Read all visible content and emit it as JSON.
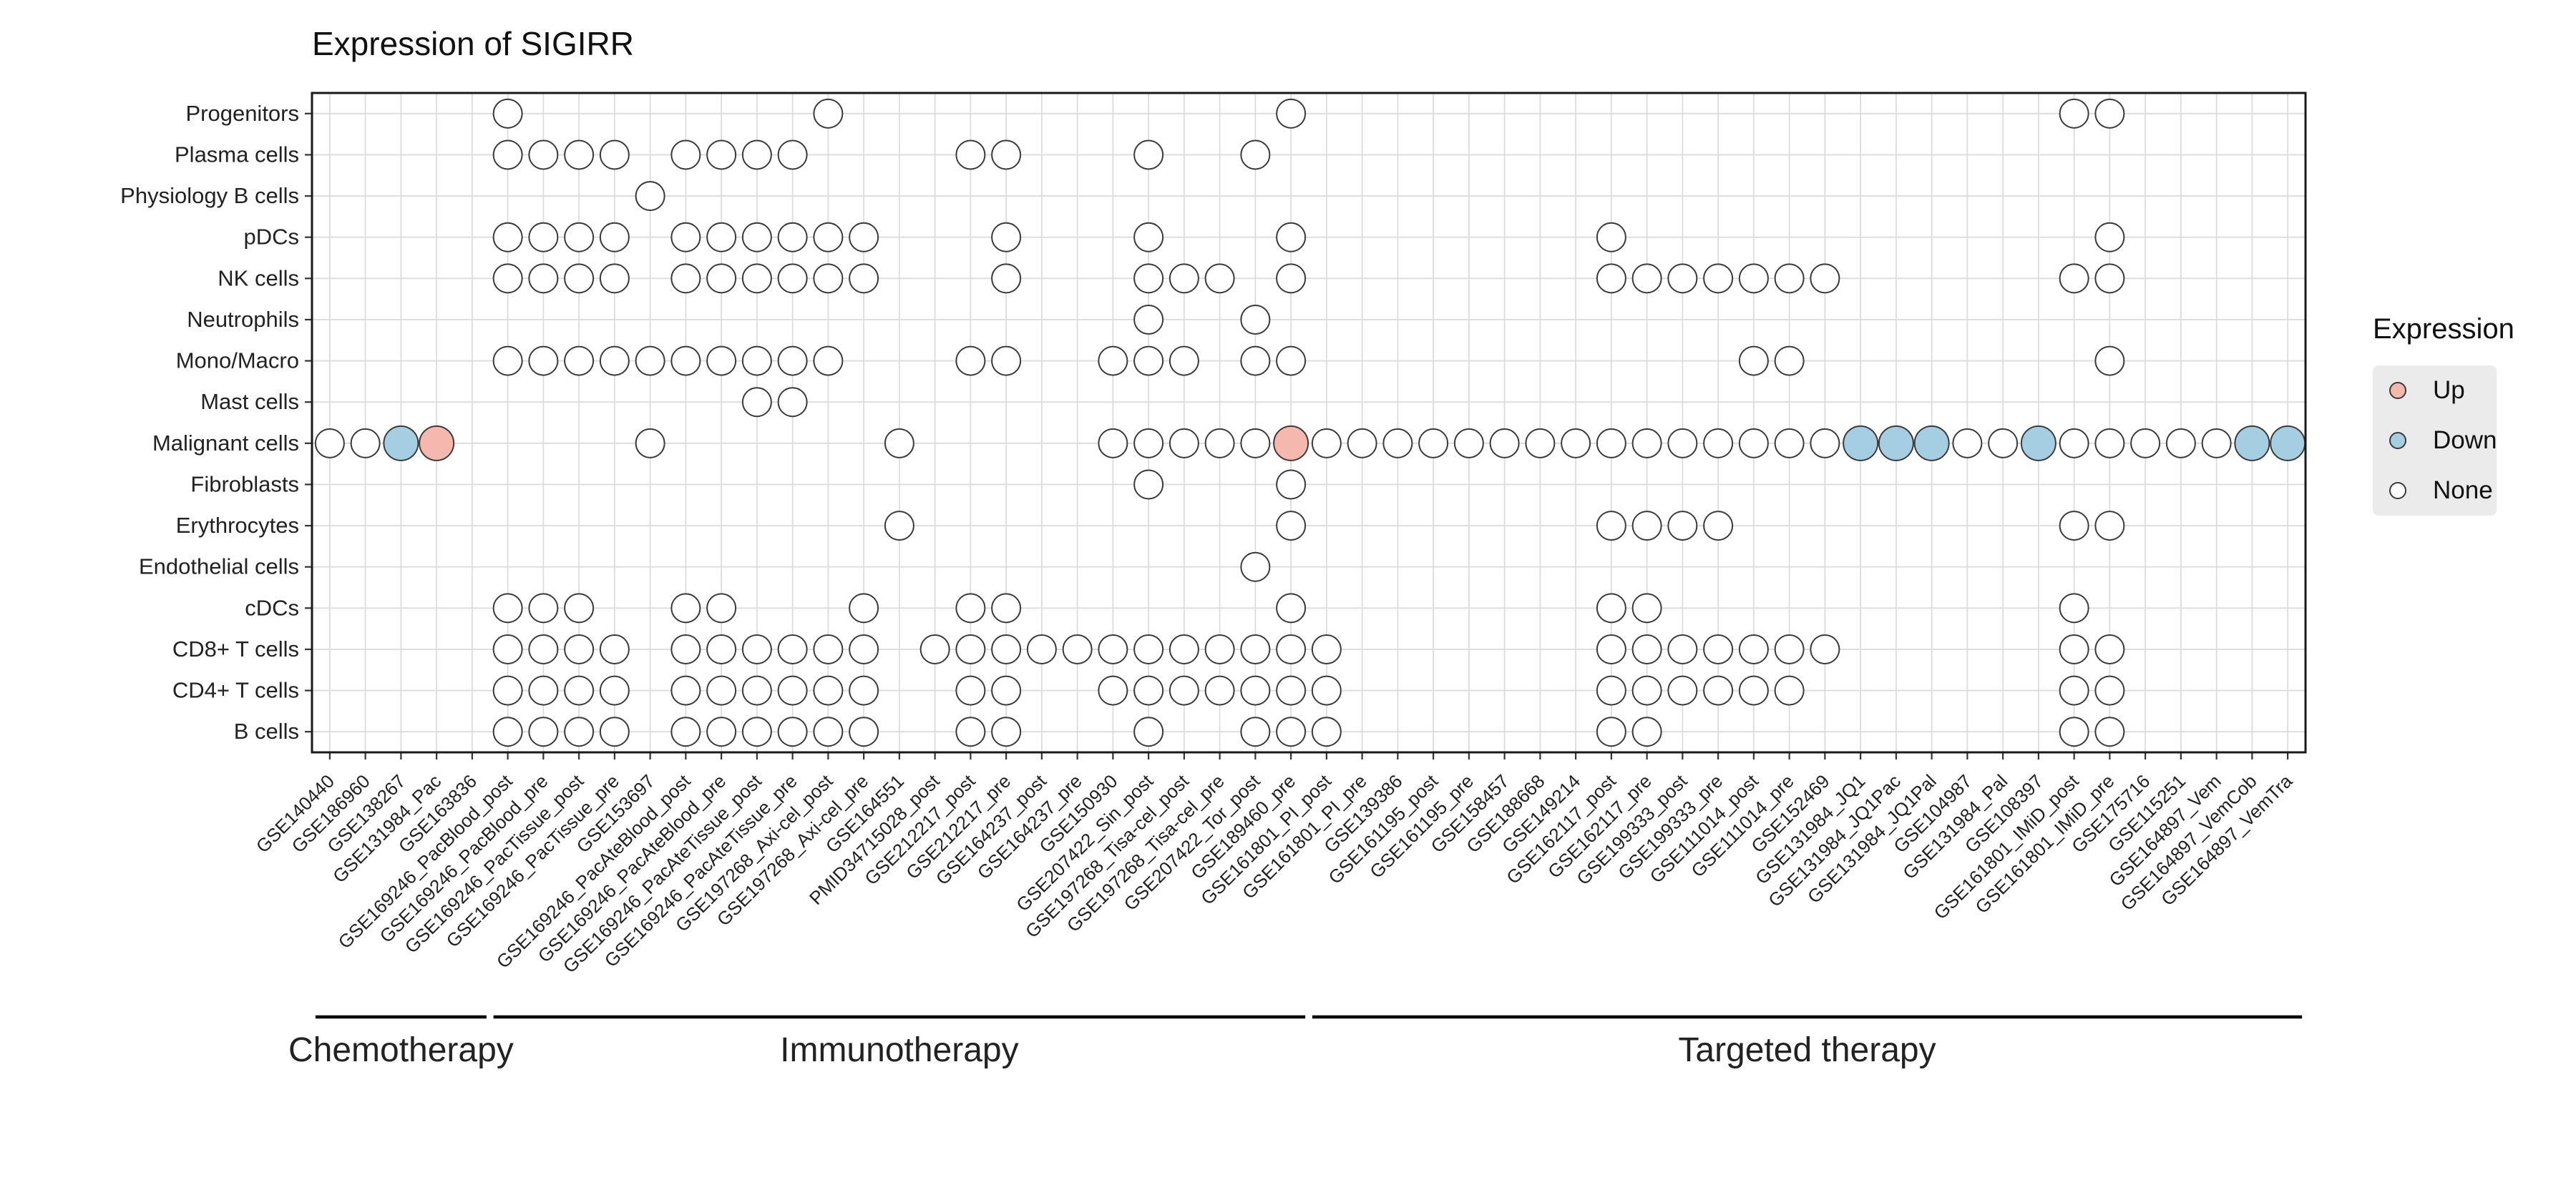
{
  "title": "Expression of SIGIRR",
  "legend": {
    "title": "Expression",
    "items": [
      {
        "label": "Up",
        "color": "#F4B8AE"
      },
      {
        "label": "Down",
        "color": "#A6CEE3"
      },
      {
        "label": "None",
        "color": "#FFFFFF"
      }
    ]
  },
  "chart_data": {
    "type": "scatter",
    "subtype": "dot-matrix",
    "title": "Expression of SIGIRR",
    "legend_position": "right",
    "grid": true,
    "colors": {
      "up": "#F4B8AE",
      "down": "#A6CEE3",
      "none": "#FFFFFF",
      "grid": "#DCDCDC",
      "border": "#1A1A1A",
      "dot_stroke": "#3A3A3A",
      "tick": "#333333"
    },
    "rows": [
      "Progenitors",
      "Plasma cells",
      "Physiology B cells",
      "pDCs",
      "NK cells",
      "Neutrophils",
      "Mono/Macro",
      "Mast cells",
      "Malignant cells",
      "Fibroblasts",
      "Erythrocytes",
      "Endothelial cells",
      "cDCs",
      "CD8+ T cells",
      "CD4+ T cells",
      "B cells"
    ],
    "columns": [
      "GSE140440",
      "GSE186960",
      "GSE138267",
      "GSE131984_Pac",
      "GSE163836",
      "GSE169246_PacBlood_post",
      "GSE169246_PacBlood_pre",
      "GSE169246_PacTissue_post",
      "GSE169246_PacTissue_pre",
      "GSE153697",
      "GSE169246_PacAteBlood_post",
      "GSE169246_PacAteBlood_pre",
      "GSE169246_PacAteTissue_post",
      "GSE169246_PacAteTissue_pre",
      "GSE197268_Axi-cel_post",
      "GSE197268_Axi-cel_pre",
      "GSE164551",
      "PMID34715028_post",
      "GSE212217_post",
      "GSE212217_pre",
      "GSE164237_post",
      "GSE164237_pre",
      "GSE150930",
      "GSE207422_Sin_post",
      "GSE197268_Tisa-cel_post",
      "GSE197268_Tisa-cel_pre",
      "GSE207422_Tor_post",
      "GSE189460_pre",
      "GSE161801_PI_post",
      "GSE161801_PI_pre",
      "GSE139386",
      "GSE161195_post",
      "GSE161195_pre",
      "GSE158457",
      "GSE188668",
      "GSE149214",
      "GSE162117_post",
      "GSE162117_pre",
      "GSE199333_post",
      "GSE199333_pre",
      "GSE111014_post",
      "GSE111014_pre",
      "GSE152469",
      "GSE131984_JQ1",
      "GSE131984_JQ1Pac",
      "GSE131984_JQ1Pal",
      "GSE104987",
      "GSE131984_Pal",
      "GSE108397",
      "GSE161801_IMiD_post",
      "GSE161801_IMiD_pre",
      "GSE175716",
      "GSE115251",
      "GSE164897_Vem",
      "GSE164897_VemCob",
      "GSE164897_VemTra"
    ],
    "groups": [
      {
        "label": "Chemotherapy",
        "start": 0,
        "end": 4
      },
      {
        "label": "Immunotherapy",
        "start": 5,
        "end": 27
      },
      {
        "label": "Targeted therapy",
        "start": 28,
        "end": 55
      }
    ],
    "values_legend": {
      "up": "Up",
      "down": "Down",
      "none": "None"
    },
    "matrix": [
      {
        "row": "Progenitors",
        "none": [
          5,
          14,
          27,
          49,
          50
        ],
        "up": [],
        "down": []
      },
      {
        "row": "Plasma cells",
        "none": [
          5,
          6,
          7,
          8,
          10,
          11,
          12,
          13,
          18,
          19,
          23,
          26
        ],
        "up": [],
        "down": []
      },
      {
        "row": "Physiology B cells",
        "none": [
          9
        ],
        "up": [],
        "down": []
      },
      {
        "row": "pDCs",
        "none": [
          5,
          6,
          7,
          8,
          10,
          11,
          12,
          13,
          14,
          15,
          19,
          23,
          27,
          36,
          50
        ],
        "up": [],
        "down": []
      },
      {
        "row": "NK cells",
        "none": [
          5,
          6,
          7,
          8,
          10,
          11,
          12,
          13,
          14,
          15,
          19,
          23,
          24,
          25,
          27,
          36,
          37,
          38,
          39,
          40,
          41,
          42,
          49,
          50
        ],
        "up": [],
        "down": []
      },
      {
        "row": "Neutrophils",
        "none": [
          23,
          26
        ],
        "up": [],
        "down": []
      },
      {
        "row": "Mono/Macro",
        "none": [
          5,
          6,
          7,
          8,
          9,
          10,
          11,
          12,
          13,
          14,
          18,
          19,
          22,
          23,
          24,
          26,
          27,
          40,
          41,
          50
        ],
        "up": [],
        "down": []
      },
      {
        "row": "Mast cells",
        "none": [
          12,
          13
        ],
        "up": [],
        "down": []
      },
      {
        "row": "Malignant cells",
        "none": [
          0,
          1,
          9,
          16,
          22,
          23,
          24,
          25,
          26,
          28,
          29,
          30,
          31,
          32,
          33,
          34,
          35,
          36,
          37,
          38,
          39,
          40,
          41,
          42,
          46,
          47,
          49,
          50,
          51,
          52,
          53
        ],
        "up": [
          3,
          27
        ],
        "down": [
          2,
          43,
          44,
          45,
          48,
          54,
          55
        ]
      },
      {
        "row": "Fibroblasts",
        "none": [
          23,
          27
        ],
        "up": [],
        "down": []
      },
      {
        "row": "Erythrocytes",
        "none": [
          16,
          27,
          36,
          37,
          38,
          39,
          49,
          50
        ],
        "up": [],
        "down": []
      },
      {
        "row": "Endothelial cells",
        "none": [
          26
        ],
        "up": [],
        "down": []
      },
      {
        "row": "cDCs",
        "none": [
          5,
          6,
          7,
          10,
          11,
          15,
          18,
          19,
          27,
          36,
          37,
          49
        ],
        "up": [],
        "down": []
      },
      {
        "row": "CD8+ T cells",
        "none": [
          5,
          6,
          7,
          8,
          10,
          11,
          12,
          13,
          14,
          15,
          17,
          18,
          19,
          20,
          21,
          22,
          23,
          24,
          25,
          26,
          27,
          28,
          36,
          37,
          38,
          39,
          40,
          41,
          42,
          49,
          50
        ],
        "up": [],
        "down": []
      },
      {
        "row": "CD4+ T cells",
        "none": [
          5,
          6,
          7,
          8,
          10,
          11,
          12,
          13,
          14,
          15,
          18,
          19,
          22,
          23,
          24,
          25,
          26,
          27,
          28,
          36,
          37,
          38,
          39,
          40,
          41,
          49,
          50
        ],
        "up": [],
        "down": []
      },
      {
        "row": "B cells",
        "none": [
          5,
          6,
          7,
          8,
          10,
          11,
          12,
          13,
          14,
          15,
          18,
          19,
          23,
          26,
          27,
          28,
          36,
          37,
          49,
          50
        ],
        "up": [],
        "down": []
      }
    ]
  }
}
